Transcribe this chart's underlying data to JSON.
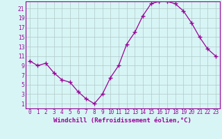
{
  "x": [
    0,
    1,
    2,
    3,
    4,
    5,
    6,
    7,
    8,
    9,
    10,
    11,
    12,
    13,
    14,
    15,
    16,
    17,
    18,
    19,
    20,
    21,
    22,
    23
  ],
  "y": [
    10,
    9,
    9.5,
    7.5,
    6,
    5.5,
    3.5,
    2,
    1,
    3,
    6.5,
    9,
    13.5,
    16,
    19.5,
    22,
    22.5,
    22.5,
    22,
    20.5,
    18,
    15,
    12.5,
    11
  ],
  "line_color": "#990099",
  "marker": "+",
  "marker_size": 4,
  "marker_lw": 1.0,
  "line_width": 0.9,
  "bg_color": "#d8f5f5",
  "grid_color": "#b0c8c8",
  "xlabel": "Windchill (Refroidissement éolien,°C)",
  "xlabel_color": "#990099",
  "ylabel_ticks": [
    1,
    3,
    5,
    7,
    9,
    11,
    13,
    15,
    17,
    19,
    21
  ],
  "ylim": [
    0,
    22.5
  ],
  "xlim": [
    -0.5,
    23.5
  ],
  "tick_fontsize": 5.5,
  "xlabel_fontsize": 6.5
}
